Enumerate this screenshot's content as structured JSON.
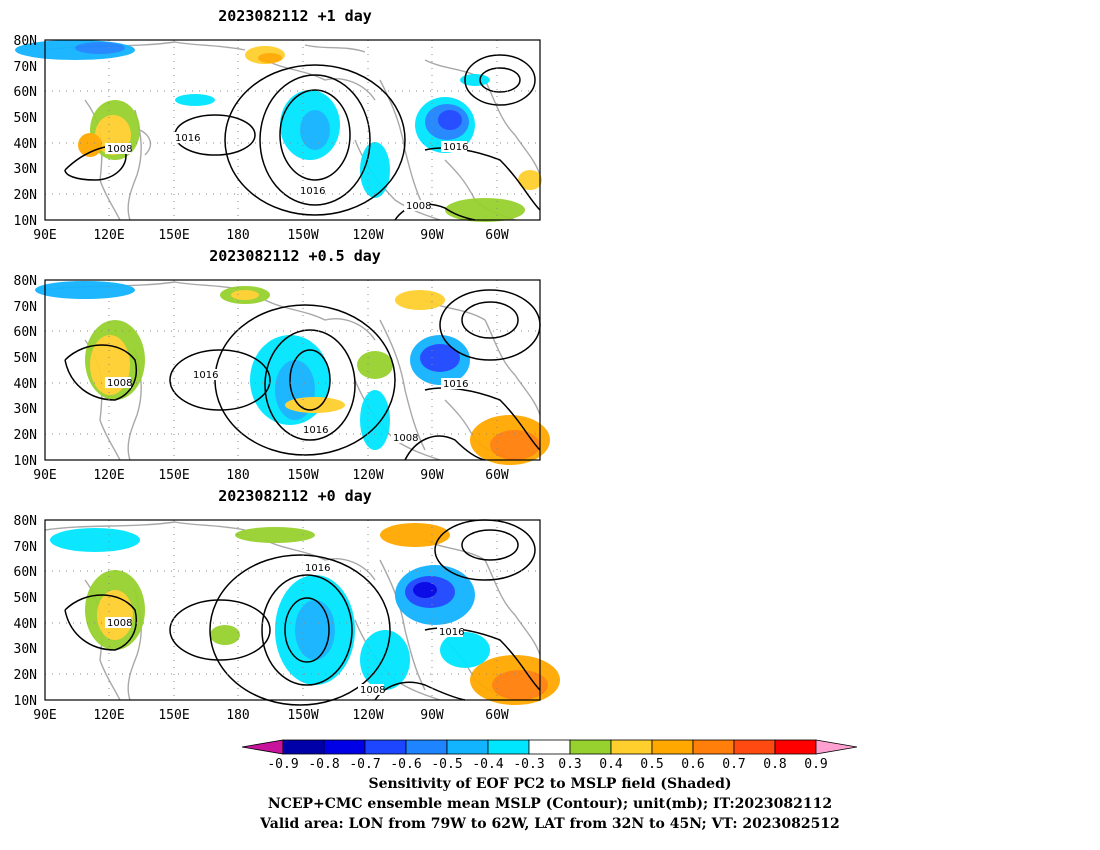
{
  "panels": [
    {
      "title": "2023082112  +1 day",
      "contour_labels": [
        "1008",
        "1016",
        "1016",
        "1016",
        "1008"
      ]
    },
    {
      "title": "2023082112  +0.5 day",
      "contour_labels": [
        "1008",
        "1016",
        "1016",
        "1016",
        "1008"
      ]
    },
    {
      "title": "2023082112  +0 day",
      "contour_labels": [
        "1008",
        "1016",
        "1016",
        "1008"
      ]
    }
  ],
  "axes": {
    "lat_ticks": [
      "80N",
      "70N",
      "60N",
      "50N",
      "40N",
      "30N",
      "20N",
      "10N"
    ],
    "lon_ticks": [
      "90E",
      "120E",
      "150E",
      "180",
      "150W",
      "120W",
      "90W",
      "60W"
    ]
  },
  "colorbar": {
    "labels": [
      "-0.9",
      "-0.8",
      "-0.7",
      "-0.6",
      "-0.5",
      "-0.4",
      "-0.3",
      "0.3",
      "0.4",
      "0.5",
      "0.6",
      "0.7",
      "0.8",
      "0.9"
    ],
    "colors": [
      "#0000a8",
      "#0000e6",
      "#1c46ff",
      "#1e84ff",
      "#12b4ff",
      "#00e6ff",
      "#ffffff",
      "#97d12f",
      "#ffcf2e",
      "#ffa800",
      "#ff7f0a",
      "#ff4a12",
      "#ff0000"
    ],
    "low_end_color": "#c8149c",
    "high_end_color": "#ffa0d0"
  },
  "caption": {
    "line1": "Sensitivity of EOF PC2 to MSLP field (Shaded)",
    "line2": "NCEP+CMC ensemble mean MSLP (Contour); unit(mb); IT:2023082112",
    "line3": "Valid area: LON from 79W to 62W, LAT from 32N to 45N; VT: 2023082512"
  }
}
